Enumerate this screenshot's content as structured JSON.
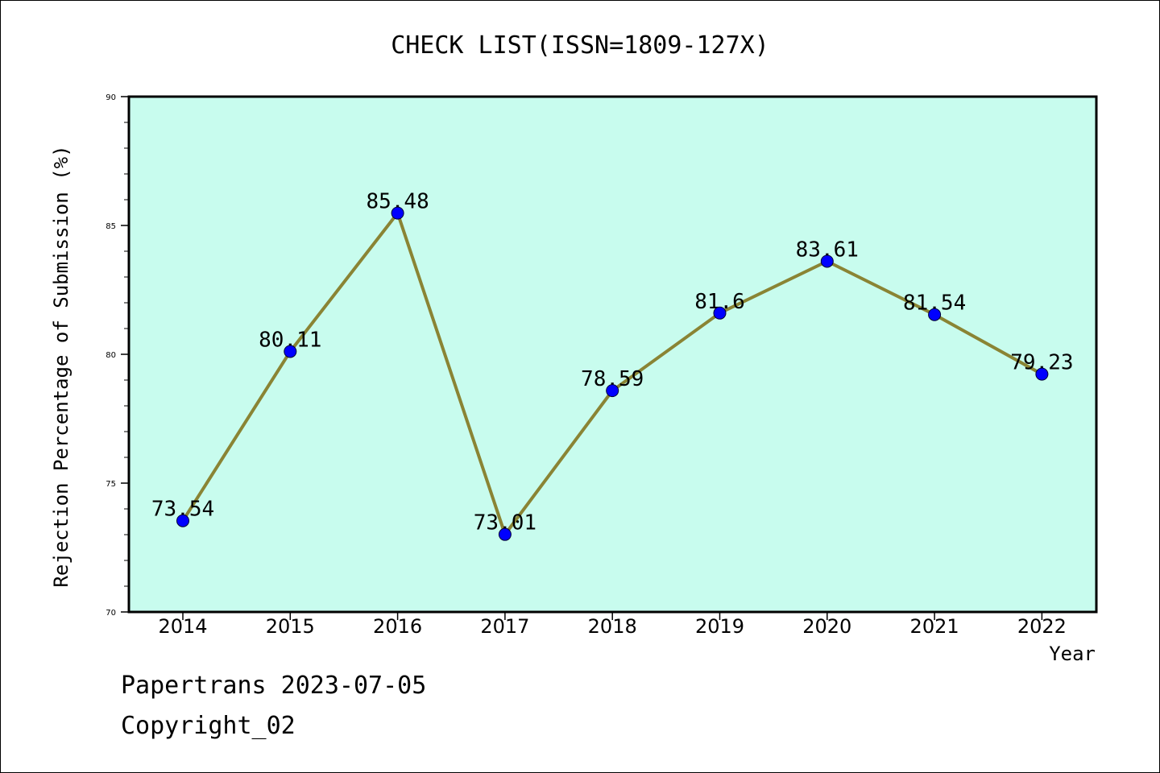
{
  "chart_data": {
    "type": "line",
    "title": "CHECK LIST(ISSN=1809-127X)",
    "xlabel": "Year",
    "ylabel": "Rejection Percentage of Submission (%)",
    "categories": [
      "2014",
      "2015",
      "2016",
      "2017",
      "2018",
      "2019",
      "2020",
      "2021",
      "2022"
    ],
    "values": [
      73.54,
      80.11,
      85.48,
      73.01,
      78.59,
      81.6,
      83.61,
      81.54,
      79.23
    ],
    "data_labels": [
      "73.54",
      "80.11",
      "85.48",
      "73.01",
      "78.59",
      "81.6",
      "83.61",
      "81.54",
      "79.23"
    ],
    "ylim": [
      70,
      90
    ],
    "yticks": [
      70,
      75,
      80,
      85,
      90
    ],
    "grid": false,
    "colors": {
      "plot_background": "#c8fcee",
      "line": "#8a8434",
      "marker": "#0000ff"
    }
  },
  "footer": {
    "line1": "Papertrans 2023-07-05",
    "line2": "Copyright_02"
  }
}
